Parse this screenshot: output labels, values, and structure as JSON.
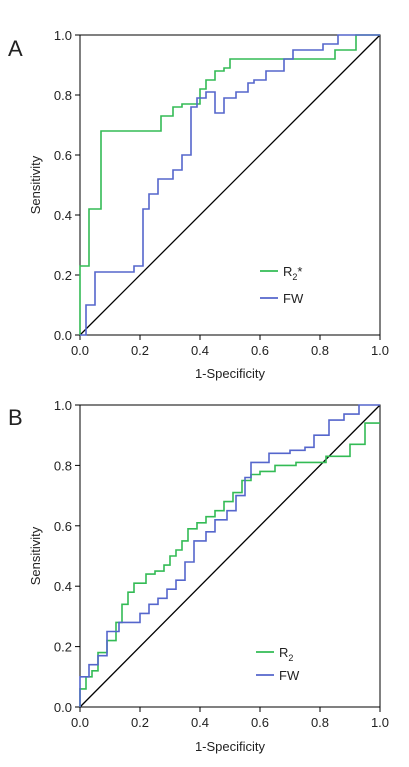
{
  "chart_data": [
    {
      "type": "line",
      "panel_label": "A",
      "xlabel": "1-Specificity",
      "ylabel": "Sensitivity",
      "xlim": [
        0,
        1
      ],
      "ylim": [
        0,
        1
      ],
      "x_ticks": [
        "0.0",
        "0.2",
        "0.4",
        "0.6",
        "0.8",
        "1.0"
      ],
      "y_ticks": [
        "0.0",
        "0.2",
        "0.4",
        "0.6",
        "0.8",
        "1.0"
      ],
      "grid": false,
      "legend_position": "bottom-right",
      "reference_line": {
        "x": [
          0,
          1
        ],
        "y": [
          0,
          1
        ],
        "color": "#000000"
      },
      "series": [
        {
          "name": "R2*",
          "label_main": "R",
          "label_sub": "2",
          "label_suffix": "*",
          "color": "#33bb55",
          "x": [
            0,
            0,
            0.03,
            0.03,
            0.07,
            0.07,
            0.27,
            0.27,
            0.31,
            0.31,
            0.34,
            0.34,
            0.4,
            0.4,
            0.42,
            0.42,
            0.45,
            0.45,
            0.48,
            0.48,
            0.5,
            0.5,
            0.85,
            0.85,
            0.92,
            0.92,
            1.0
          ],
          "y": [
            0,
            0.23,
            0.23,
            0.42,
            0.42,
            0.68,
            0.68,
            0.73,
            0.73,
            0.76,
            0.76,
            0.77,
            0.77,
            0.82,
            0.82,
            0.85,
            0.85,
            0.88,
            0.88,
            0.89,
            0.89,
            0.92,
            0.92,
            0.95,
            0.95,
            1.0,
            1.0
          ]
        },
        {
          "name": "FW",
          "label_main": "FW",
          "label_sub": "",
          "label_suffix": "",
          "color": "#5566cc",
          "x": [
            0,
            0.02,
            0.02,
            0.05,
            0.05,
            0.18,
            0.18,
            0.21,
            0.21,
            0.23,
            0.23,
            0.26,
            0.26,
            0.31,
            0.31,
            0.34,
            0.34,
            0.37,
            0.37,
            0.39,
            0.39,
            0.42,
            0.42,
            0.45,
            0.45,
            0.48,
            0.48,
            0.52,
            0.52,
            0.56,
            0.56,
            0.58,
            0.58,
            0.62,
            0.62,
            0.68,
            0.68,
            0.71,
            0.71,
            0.81,
            0.81,
            0.86,
            0.86,
            0.9,
            0.9,
            1.0
          ],
          "y": [
            0,
            0,
            0.1,
            0.1,
            0.21,
            0.21,
            0.23,
            0.23,
            0.42,
            0.42,
            0.47,
            0.47,
            0.52,
            0.52,
            0.55,
            0.55,
            0.6,
            0.6,
            0.76,
            0.76,
            0.79,
            0.79,
            0.81,
            0.81,
            0.74,
            0.74,
            0.79,
            0.79,
            0.81,
            0.81,
            0.84,
            0.84,
            0.85,
            0.85,
            0.88,
            0.88,
            0.92,
            0.92,
            0.95,
            0.95,
            0.97,
            0.97,
            1.0,
            1.0,
            1.0,
            1.0
          ]
        }
      ]
    },
    {
      "type": "line",
      "panel_label": "B",
      "xlabel": "1-Specificity",
      "ylabel": "Sensitivity",
      "xlim": [
        0,
        1
      ],
      "ylim": [
        0,
        1
      ],
      "x_ticks": [
        "0.0",
        "0.2",
        "0.4",
        "0.6",
        "0.8",
        "1.0"
      ],
      "y_ticks": [
        "0.0",
        "0.2",
        "0.4",
        "0.6",
        "0.8",
        "1.0"
      ],
      "grid": false,
      "legend_position": "bottom-right",
      "reference_line": {
        "x": [
          0,
          1
        ],
        "y": [
          0,
          1
        ],
        "color": "#000000"
      },
      "series": [
        {
          "name": "R2",
          "label_main": "R",
          "label_sub": "2",
          "label_suffix": "",
          "color": "#33bb55",
          "x": [
            0,
            0,
            0.02,
            0.02,
            0.04,
            0.04,
            0.06,
            0.06,
            0.09,
            0.09,
            0.12,
            0.12,
            0.14,
            0.14,
            0.16,
            0.16,
            0.18,
            0.18,
            0.22,
            0.22,
            0.25,
            0.25,
            0.28,
            0.28,
            0.3,
            0.3,
            0.32,
            0.32,
            0.34,
            0.34,
            0.36,
            0.36,
            0.39,
            0.39,
            0.42,
            0.42,
            0.45,
            0.45,
            0.48,
            0.48,
            0.51,
            0.51,
            0.54,
            0.54,
            0.57,
            0.57,
            0.6,
            0.6,
            0.65,
            0.65,
            0.72,
            0.72,
            0.79,
            0.79,
            0.82,
            0.82,
            0.9,
            0.9,
            0.95,
            0.95,
            0.98,
            0.98,
            1.0
          ],
          "y": [
            0,
            0.06,
            0.06,
            0.1,
            0.1,
            0.12,
            0.12,
            0.18,
            0.18,
            0.22,
            0.22,
            0.28,
            0.28,
            0.34,
            0.34,
            0.38,
            0.38,
            0.41,
            0.41,
            0.44,
            0.44,
            0.45,
            0.45,
            0.47,
            0.47,
            0.5,
            0.5,
            0.52,
            0.52,
            0.55,
            0.55,
            0.59,
            0.59,
            0.61,
            0.61,
            0.63,
            0.63,
            0.65,
            0.65,
            0.68,
            0.68,
            0.71,
            0.71,
            0.75,
            0.75,
            0.77,
            0.77,
            0.78,
            0.78,
            0.8,
            0.8,
            0.81,
            0.81,
            0.81,
            0.81,
            0.83,
            0.83,
            0.87,
            0.87,
            0.94,
            0.94,
            0.94,
            0.94
          ]
        },
        {
          "name": "FW",
          "label_main": "FW",
          "label_sub": "",
          "label_suffix": "",
          "color": "#5566cc",
          "x": [
            0,
            0,
            0.03,
            0.03,
            0.06,
            0.06,
            0.09,
            0.09,
            0.13,
            0.13,
            0.2,
            0.2,
            0.23,
            0.23,
            0.26,
            0.26,
            0.29,
            0.29,
            0.32,
            0.32,
            0.35,
            0.35,
            0.38,
            0.38,
            0.42,
            0.42,
            0.45,
            0.45,
            0.49,
            0.49,
            0.52,
            0.52,
            0.55,
            0.55,
            0.57,
            0.57,
            0.63,
            0.63,
            0.7,
            0.7,
            0.75,
            0.75,
            0.78,
            0.78,
            0.83,
            0.83,
            0.88,
            0.88,
            0.93,
            0.93,
            1.0
          ],
          "y": [
            0,
            0.1,
            0.1,
            0.14,
            0.14,
            0.17,
            0.17,
            0.25,
            0.25,
            0.28,
            0.28,
            0.31,
            0.31,
            0.34,
            0.34,
            0.36,
            0.36,
            0.39,
            0.39,
            0.42,
            0.42,
            0.48,
            0.48,
            0.55,
            0.55,
            0.58,
            0.58,
            0.62,
            0.62,
            0.65,
            0.65,
            0.7,
            0.7,
            0.76,
            0.76,
            0.81,
            0.81,
            0.84,
            0.84,
            0.85,
            0.85,
            0.86,
            0.86,
            0.9,
            0.9,
            0.95,
            0.95,
            0.97,
            0.97,
            1.0,
            1.0
          ]
        }
      ]
    }
  ]
}
